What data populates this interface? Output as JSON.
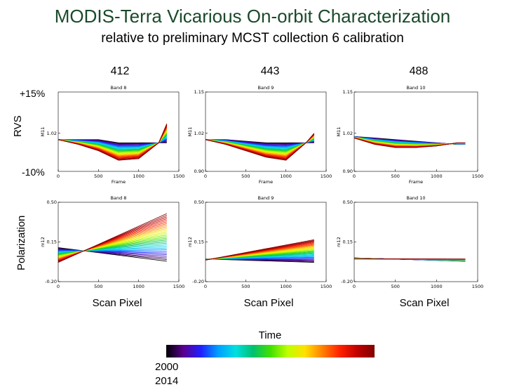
{
  "title": "MODIS-Terra Vicarious On-orbit Characterization",
  "subtitle": "relative to preliminary MCST collection 6 calibration",
  "wavelengths": [
    "412",
    "443",
    "488"
  ],
  "rvs_label": "RVS",
  "polarization_label": "Polarization",
  "rvs_range_labels": {
    "top": "+15%",
    "bottom": "-10%"
  },
  "scan_pixel_label": "Scan Pixel",
  "time_label": "Time",
  "time_years": {
    "start": "2000",
    "end": "2014"
  },
  "colorbar_colors": [
    "#000000",
    "#5a0090",
    "#2020ff",
    "#00a0ff",
    "#00e0e0",
    "#00c070",
    "#40e000",
    "#c0ff00",
    "#ffe000",
    "#ff8000",
    "#ff2000",
    "#c00000",
    "#800000"
  ],
  "chart_data": [
    {
      "type": "line",
      "panel": "rvs-band8",
      "title": "Band 8",
      "xlabel": "Frame",
      "ylabel": "M11",
      "xlim": [
        0,
        1500
      ],
      "ylim": [
        0.9,
        1.15
      ],
      "xticks": [
        "0",
        "500",
        "1000",
        "1500"
      ],
      "yticks": [
        "1.02"
      ],
      "series_count": 30,
      "series": [
        {
          "name": "2000",
          "x": [
            0,
            250,
            500,
            750,
            1000,
            1250,
            1350
          ],
          "y": [
            1.0,
            1.0,
            1.0,
            0.99,
            0.99,
            0.99,
            0.99
          ]
        },
        {
          "name": "2014",
          "x": [
            0,
            250,
            500,
            750,
            1000,
            1250,
            1350
          ],
          "y": [
            1.0,
            0.985,
            0.965,
            0.935,
            0.94,
            0.99,
            1.05
          ]
        }
      ]
    },
    {
      "type": "line",
      "panel": "rvs-band9",
      "title": "Band 9",
      "xlabel": "Frame",
      "ylabel": "M11",
      "xlim": [
        0,
        1500
      ],
      "ylim": [
        0.9,
        1.15
      ],
      "xticks": [
        "0",
        "500",
        "1000",
        "1500"
      ],
      "yticks": [
        "1.15",
        "1.02",
        "0.90"
      ],
      "series_count": 30,
      "series": [
        {
          "name": "2000",
          "x": [
            0,
            250,
            500,
            750,
            1000,
            1250,
            1350
          ],
          "y": [
            1.0,
            1.0,
            0.995,
            0.99,
            0.99,
            0.99,
            0.99
          ]
        },
        {
          "name": "2014",
          "x": [
            0,
            250,
            500,
            750,
            1000,
            1250,
            1350
          ],
          "y": [
            1.0,
            0.985,
            0.965,
            0.945,
            0.935,
            0.99,
            1.02
          ]
        }
      ]
    },
    {
      "type": "line",
      "panel": "rvs-band10",
      "title": "Band 10",
      "xlabel": "Frame",
      "ylabel": "M11",
      "xlim": [
        0,
        1500
      ],
      "ylim": [
        0.9,
        1.15
      ],
      "xticks": [
        "0",
        "500",
        "1000",
        "1500"
      ],
      "yticks": [
        "1.15",
        "1.02",
        "0.90"
      ],
      "series_count": 30,
      "series": [
        {
          "name": "2000",
          "x": [
            0,
            250,
            500,
            750,
            1000,
            1250,
            1350
          ],
          "y": [
            1.01,
            1.005,
            1.0,
            0.995,
            0.99,
            0.985,
            0.985
          ]
        },
        {
          "name": "2014",
          "x": [
            0,
            250,
            500,
            750,
            1000,
            1250,
            1350
          ],
          "y": [
            1.005,
            0.985,
            0.975,
            0.975,
            0.98,
            0.99,
            0.99
          ]
        }
      ]
    },
    {
      "type": "line",
      "panel": "pol-band8",
      "title": "Band 8",
      "xlabel": "Scan Pixel",
      "ylabel": "m12",
      "xlim": [
        0,
        1500
      ],
      "ylim": [
        -0.2,
        0.5
      ],
      "xticks": [
        "0",
        "500",
        "1000",
        "1500"
      ],
      "yticks": [
        "0.50",
        "0.15",
        "-0.20"
      ],
      "series_count": 30,
      "series": [
        {
          "name": "2000",
          "x": [
            0,
            1350
          ],
          "y": [
            0.1,
            -0.02
          ]
        },
        {
          "name": "2014",
          "x": [
            0,
            1350
          ],
          "y": [
            -0.03,
            0.4
          ]
        }
      ]
    },
    {
      "type": "line",
      "panel": "pol-band9",
      "title": "Band 9",
      "xlabel": "Scan Pixel",
      "ylabel": "m12",
      "xlim": [
        0,
        1500
      ],
      "ylim": [
        -0.2,
        0.5
      ],
      "xticks": [
        "0",
        "500",
        "1000",
        "1500"
      ],
      "yticks": [
        "0.50",
        "0.15",
        "-0.20"
      ],
      "series_count": 30,
      "series": [
        {
          "name": "2000",
          "x": [
            0,
            1350
          ],
          "y": [
            0.0,
            -0.03
          ]
        },
        {
          "name": "2014",
          "x": [
            0,
            1350
          ],
          "y": [
            -0.01,
            0.17
          ]
        }
      ]
    },
    {
      "type": "line",
      "panel": "pol-band10",
      "title": "Band 10",
      "xlabel": "Scan Pixel",
      "ylabel": "m12",
      "xlim": [
        0,
        1500
      ],
      "ylim": [
        -0.2,
        0.5
      ],
      "xticks": [
        "0",
        "500",
        "1000",
        "1500"
      ],
      "yticks": [
        "0.50",
        "0.15",
        "-0.20"
      ],
      "series_count": 30,
      "series": [
        {
          "name": "2000",
          "x": [
            0,
            1350
          ],
          "y": [
            0.01,
            -0.02
          ]
        },
        {
          "name": "2014",
          "x": [
            0,
            1350
          ],
          "y": [
            0.0,
            0.0
          ]
        }
      ]
    }
  ]
}
